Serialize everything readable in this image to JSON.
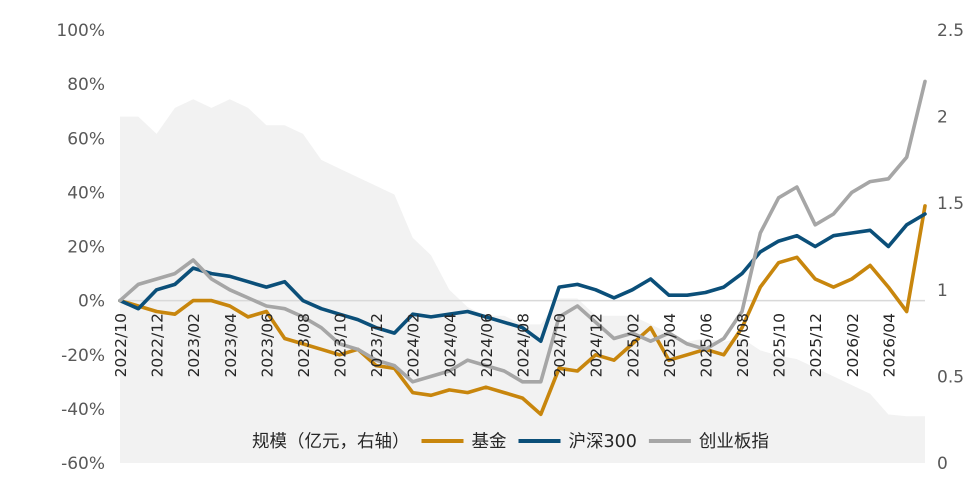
{
  "chart_data": {
    "type": "line",
    "title": "",
    "x_tick_labels": [
      "2022/10",
      "2022/12",
      "2023/02",
      "2023/04",
      "2023/06",
      "2023/08",
      "2023/10",
      "2023/12",
      "2024/02",
      "2024/04",
      "2024/06",
      "2024/08",
      "2024/10",
      "2024/12",
      "2025/02",
      "2025/04",
      "2025/06",
      "2025/08",
      "2025/10",
      "2025/12",
      "2026/02",
      "2026/04"
    ],
    "x_range": [
      "2022/10",
      "2026/06"
    ],
    "left_axis": {
      "ticks": [
        "100%",
        "80%",
        "60%",
        "40%",
        "20%",
        "0%",
        "-20%",
        "-40%",
        "-60%"
      ],
      "ylim": [
        -60,
        100
      ],
      "unit": "%"
    },
    "right_axis": {
      "ticks": [
        "2.5",
        "2",
        "1.5",
        "1",
        "0.5",
        "0"
      ],
      "ylim": [
        0,
        2.5
      ]
    },
    "zero_line": true,
    "legend": {
      "placement": "bottom",
      "entries": [
        "规模（亿元，右轴）",
        "基金",
        "沪深300",
        "创业板指"
      ]
    },
    "series": [
      {
        "name": "规模（亿元，右轴）",
        "axis": "right",
        "type": "area",
        "color": "#f2f2f2",
        "x": [
          "2022/10",
          "2022/11",
          "2022/12",
          "2023/01",
          "2023/02",
          "2023/03",
          "2023/04",
          "2023/05",
          "2023/06",
          "2023/07",
          "2023/08",
          "2023/09",
          "2023/10",
          "2023/11",
          "2023/12",
          "2024/01",
          "2024/02",
          "2024/03",
          "2024/04",
          "2024/05",
          "2024/06",
          "2024/07",
          "2024/08",
          "2024/09",
          "2024/10",
          "2024/11",
          "2024/12",
          "2025/01",
          "2025/02",
          "2025/03",
          "2025/04",
          "2025/05",
          "2025/06",
          "2025/07",
          "2025/08",
          "2025/09",
          "2025/10",
          "2025/11",
          "2025/12",
          "2026/01",
          "2026/02",
          "2026/03",
          "2026/04",
          "2026/05",
          "2026/06"
        ],
        "values": [
          2.0,
          2.0,
          1.9,
          2.05,
          2.1,
          2.05,
          2.1,
          2.05,
          1.95,
          1.95,
          1.9,
          1.75,
          1.7,
          1.65,
          1.6,
          1.55,
          1.3,
          1.2,
          1.0,
          0.9,
          0.85,
          0.85,
          0.8,
          0.8,
          0.95,
          0.95,
          0.85,
          0.85,
          0.85,
          0.8,
          0.75,
          0.7,
          0.72,
          0.7,
          0.72,
          0.65,
          0.62,
          0.6,
          0.55,
          0.5,
          0.45,
          0.4,
          0.28,
          0.27,
          0.27
        ]
      },
      {
        "name": "基金",
        "axis": "left",
        "color": "#c8860d",
        "x": [
          "2022/10",
          "2022/11",
          "2022/12",
          "2023/01",
          "2023/02",
          "2023/03",
          "2023/04",
          "2023/05",
          "2023/06",
          "2023/07",
          "2023/08",
          "2023/09",
          "2023/10",
          "2023/11",
          "2023/12",
          "2024/01",
          "2024/02",
          "2024/03",
          "2024/04",
          "2024/05",
          "2024/06",
          "2024/07",
          "2024/08",
          "2024/09",
          "2024/10",
          "2024/11",
          "2024/12",
          "2025/01",
          "2025/02",
          "2025/03",
          "2025/04",
          "2025/05",
          "2025/06",
          "2025/07",
          "2025/08",
          "2025/09",
          "2025/10",
          "2025/11",
          "2025/12",
          "2026/01",
          "2026/02",
          "2026/03",
          "2026/04",
          "2026/05",
          "2026/06"
        ],
        "values": [
          0,
          -2,
          -4,
          -5,
          0,
          0,
          -2,
          -6,
          -4,
          -14,
          -16,
          -18,
          -20,
          -18,
          -24,
          -25,
          -34,
          -35,
          -33,
          -34,
          -32,
          -34,
          -36,
          -42,
          -25,
          -26,
          -20,
          -22,
          -16,
          -10,
          -22,
          -20,
          -18,
          -20,
          -10,
          5,
          14,
          16,
          8,
          5,
          8,
          13,
          5,
          -4,
          35
        ]
      },
      {
        "name": "沪深300",
        "axis": "left",
        "color": "#0b4f79",
        "x": [
          "2022/10",
          "2022/11",
          "2022/12",
          "2023/01",
          "2023/02",
          "2023/03",
          "2023/04",
          "2023/05",
          "2023/06",
          "2023/07",
          "2023/08",
          "2023/09",
          "2023/10",
          "2023/11",
          "2023/12",
          "2024/01",
          "2024/02",
          "2024/03",
          "2024/04",
          "2024/05",
          "2024/06",
          "2024/07",
          "2024/08",
          "2024/09",
          "2024/10",
          "2024/11",
          "2024/12",
          "2025/01",
          "2025/02",
          "2025/03",
          "2025/04",
          "2025/05",
          "2025/06",
          "2025/07",
          "2025/08",
          "2025/09",
          "2025/10",
          "2025/11",
          "2025/12",
          "2026/01",
          "2026/02",
          "2026/03",
          "2026/04",
          "2026/05",
          "2026/06"
        ],
        "values": [
          0,
          -3,
          4,
          6,
          12,
          10,
          9,
          7,
          5,
          7,
          0,
          -3,
          -5,
          -7,
          -10,
          -12,
          -5,
          -6,
          -5,
          -4,
          -6,
          -8,
          -10,
          -15,
          5,
          6,
          4,
          1,
          4,
          8,
          2,
          2,
          3,
          5,
          10,
          18,
          22,
          24,
          20,
          24,
          25,
          26,
          20,
          28,
          32
        ]
      },
      {
        "name": "创业板指",
        "axis": "left",
        "color": "#a6a6a6",
        "x": [
          "2022/10",
          "2022/11",
          "2022/12",
          "2023/01",
          "2023/02",
          "2023/03",
          "2023/04",
          "2023/05",
          "2023/06",
          "2023/07",
          "2023/08",
          "2023/09",
          "2023/10",
          "2023/11",
          "2023/12",
          "2024/01",
          "2024/02",
          "2024/03",
          "2024/04",
          "2024/05",
          "2024/06",
          "2024/07",
          "2024/08",
          "2024/09",
          "2024/10",
          "2024/11",
          "2024/12",
          "2025/01",
          "2025/02",
          "2025/03",
          "2025/04",
          "2025/05",
          "2025/06",
          "2025/07",
          "2025/08",
          "2025/09",
          "2025/10",
          "2025/11",
          "2025/12",
          "2026/01",
          "2026/02",
          "2026/03",
          "2026/04",
          "2026/05",
          "2026/06"
        ],
        "values": [
          0,
          6,
          8,
          10,
          15,
          8,
          4,
          1,
          -2,
          -3,
          -6,
          -10,
          -16,
          -18,
          -22,
          -24,
          -30,
          -28,
          -26,
          -22,
          -24,
          -26,
          -30,
          -30,
          -6,
          -2,
          -8,
          -14,
          -12,
          -15,
          -12,
          -16,
          -18,
          -14,
          -4,
          25,
          38,
          42,
          28,
          32,
          40,
          44,
          45,
          53,
          81
        ]
      }
    ]
  }
}
